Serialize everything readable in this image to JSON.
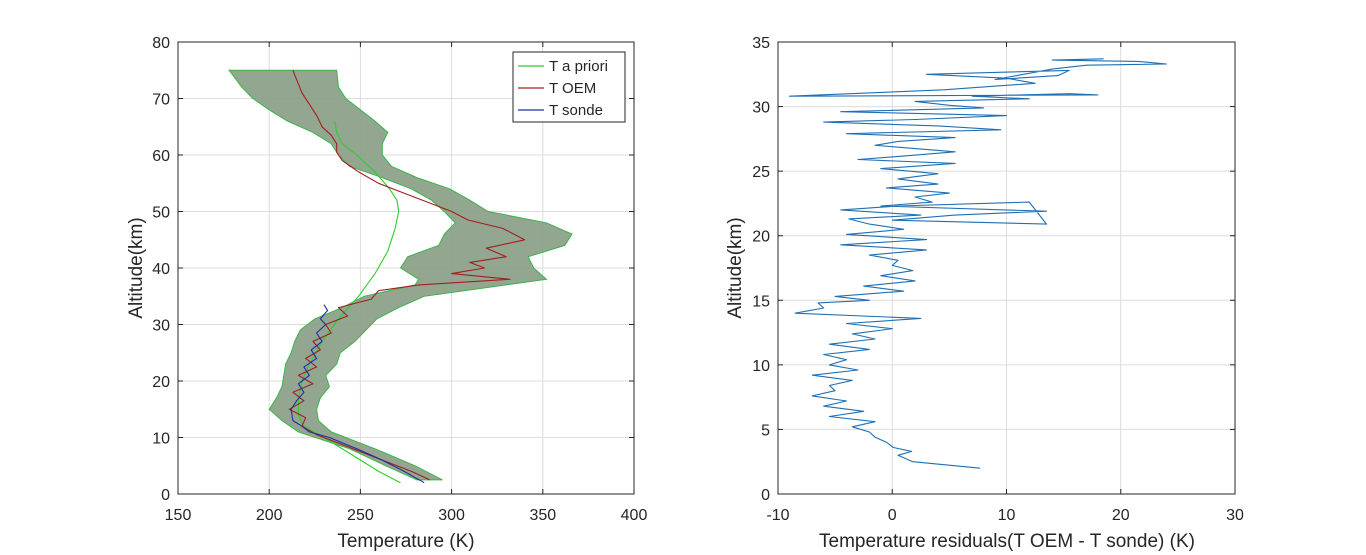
{
  "chart_data": [
    {
      "type": "line",
      "xlabel": "Temperature (K)",
      "ylabel": "Altitude(km)",
      "xlim": [
        150,
        400
      ],
      "ylim": [
        0,
        80
      ],
      "xticks": [
        150,
        200,
        250,
        300,
        350,
        400
      ],
      "yticks": [
        0,
        10,
        20,
        30,
        40,
        50,
        60,
        70,
        80
      ],
      "grid": true,
      "legend": {
        "placement": "top-right",
        "entries": [
          "T a priori",
          "T OEM",
          "T sonde"
        ]
      },
      "band": {
        "name": "T OEM uncertainty",
        "color": "#8a9e87",
        "edge_color": "#3cb44b",
        "y": [
          2.5,
          5,
          8,
          11,
          13,
          15,
          17,
          19,
          21,
          23,
          25,
          27,
          29,
          31,
          33,
          35,
          37,
          38,
          40,
          42,
          44,
          46,
          48,
          50,
          52,
          54,
          56,
          58,
          60,
          62,
          64,
          66,
          68,
          70,
          72,
          75
        ],
        "lower": [
          281,
          264,
          244,
          216,
          207,
          200,
          204,
          207,
          208,
          209,
          212,
          214,
          217,
          225,
          240,
          252,
          280,
          282,
          272,
          276,
          293,
          296,
          302,
          296,
          289,
          278,
          262,
          244,
          238,
          234,
          224,
          210,
          200,
          191,
          185,
          178
        ],
        "upper": [
          295,
          280,
          258,
          234,
          227,
          226,
          228,
          233,
          231,
          237,
          239,
          247,
          253,
          259,
          271,
          285,
          330,
          352,
          345,
          342,
          362,
          366,
          352,
          320,
          310,
          299,
          281,
          267,
          262,
          262,
          265,
          258,
          250,
          242,
          238,
          237
        ]
      },
      "series": [
        {
          "name": "T a priori",
          "color": "#2ecc2e",
          "x": [
            272,
            260,
            245,
            230,
            219,
            216,
            216,
            218,
            222,
            229,
            238,
            249,
            258,
            265,
            269,
            271,
            270,
            266,
            258,
            248,
            240,
            237,
            236
          ],
          "y": [
            2,
            4,
            7,
            10,
            12,
            14,
            17,
            20,
            23,
            27,
            31,
            35,
            39,
            43,
            47,
            50,
            52,
            54,
            57,
            60,
            62,
            64,
            66
          ]
        },
        {
          "name": "T OEM",
          "color": "#a02020",
          "x": [
            288,
            278,
            262,
            246,
            226,
            218,
            220,
            211,
            219,
            213,
            224,
            216,
            226,
            220,
            228,
            224,
            234,
            231,
            243,
            238,
            256,
            260,
            282,
            332,
            300,
            318,
            310,
            330,
            319,
            340,
            328,
            309,
            300,
            288,
            276,
            260,
            249,
            240,
            237,
            237,
            234,
            229,
            226,
            222,
            218,
            213
          ],
          "y": [
            2.5,
            4,
            6,
            8,
            10.5,
            12,
            13.5,
            15,
            16.5,
            18,
            19.5,
            21,
            22.5,
            24,
            25.5,
            27,
            28.5,
            30,
            31.5,
            33,
            34.5,
            36,
            37,
            38,
            39,
            40,
            41,
            42,
            43.5,
            45,
            47,
            48.5,
            50,
            51.5,
            53,
            55,
            57,
            59,
            60.5,
            62,
            63.5,
            65,
            67,
            69,
            71,
            75
          ]
        },
        {
          "name": "T sonde",
          "color": "#1f2ea8",
          "x": [
            285,
            274,
            262,
            248,
            233,
            222,
            218,
            213,
            212,
            215,
            219,
            216,
            222,
            219,
            226,
            223,
            229,
            226,
            231,
            228,
            232,
            230
          ],
          "y": [
            2,
            4,
            6,
            8,
            10,
            11,
            12,
            13,
            15,
            16.5,
            18,
            19.5,
            21,
            22.5,
            24,
            25.5,
            27,
            28.5,
            30,
            31,
            32.5,
            33.5
          ]
        }
      ]
    },
    {
      "type": "line",
      "xlabel": "Temperature residuals(T OEM - T sonde) (K)",
      "ylabel": "Altitude(km)",
      "xlim": [
        -10,
        30
      ],
      "ylim": [
        0,
        35
      ],
      "xticks": [
        -10,
        0,
        10,
        20,
        30
      ],
      "yticks": [
        0,
        5,
        10,
        15,
        20,
        25,
        30,
        35
      ],
      "grid": true,
      "series": [
        {
          "color": "#1f6fb5",
          "x": [
            7.7,
            1.8,
            0.5,
            1.7,
            0.1,
            -0.5,
            -1.5,
            -2,
            -3.5,
            -1.5,
            -5.5,
            -2.5,
            -6,
            -4,
            -7,
            -5,
            -5.5,
            -3.5,
            -7,
            -3,
            -5.5,
            -4,
            -6,
            -2,
            -5.5,
            -1.5,
            -3.5,
            0,
            -4,
            2.5,
            -8.5,
            -6,
            -6.5,
            -2,
            -5,
            1,
            -2.5,
            2,
            -1,
            1.8,
            0,
            0.5,
            -2,
            3,
            -4.5,
            3,
            -4,
            1,
            -2,
            -3.8,
            2.5,
            -4.5,
            0.5,
            12,
            13.5,
            0,
            5.5,
            13.5,
            -1,
            3.5,
            2,
            5,
            -0.5,
            4,
            0.5,
            4,
            -1,
            5.5,
            -3,
            1.5,
            5.5,
            -1.5,
            0.5,
            5.5,
            -4,
            9.5,
            4,
            -6,
            2,
            10,
            -4.5,
            8,
            5,
            2,
            12,
            7,
            15.5,
            18,
            -9,
            4.5,
            12.5,
            10,
            3,
            15.5,
            14.5,
            9,
            14,
            17,
            24,
            21.5,
            14,
            18.5
          ],
          "y": [
            2,
            2.5,
            3,
            3.3,
            3.6,
            4,
            4.4,
            4.8,
            5.2,
            5.6,
            6,
            6.4,
            6.8,
            7.2,
            7.6,
            8,
            8.4,
            8.8,
            9.2,
            9.6,
            10,
            10.4,
            10.8,
            11.2,
            11.6,
            12,
            12.4,
            12.8,
            13.2,
            13.6,
            14,
            14.4,
            14.8,
            15,
            15.3,
            15.7,
            16.1,
            16.5,
            16.9,
            17.3,
            17.7,
            18.1,
            18.5,
            18.9,
            19.3,
            19.7,
            20.1,
            20.5,
            20.9,
            21.3,
            21.6,
            22,
            22.3,
            22.6,
            20.9,
            21.2,
            21.6,
            21.9,
            22.3,
            22.6,
            23,
            23.3,
            23.7,
            24,
            24.4,
            24.8,
            25.2,
            25.6,
            25.9,
            26.2,
            26.5,
            27,
            27.3,
            27.6,
            27.9,
            28.2,
            28.5,
            28.8,
            29,
            29.3,
            29.6,
            29.9,
            30.1,
            30.4,
            30.6,
            30.8,
            31,
            30.9,
            30.8,
            31.3,
            31.8,
            32.2,
            32.5,
            32.8,
            32.4,
            32.1,
            32.9,
            33.2,
            33.3,
            33.5,
            33.6,
            33.7
          ]
        }
      ]
    }
  ]
}
